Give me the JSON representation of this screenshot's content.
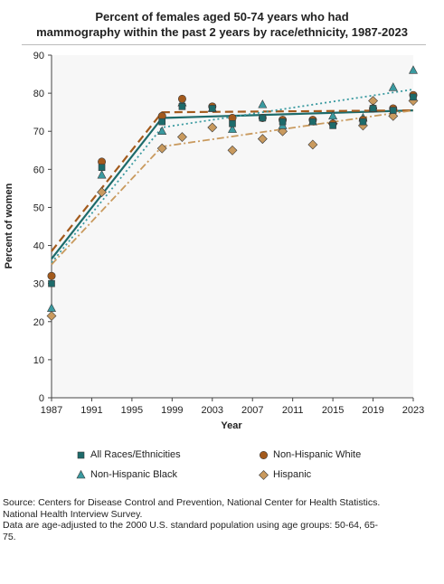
{
  "chart_data": {
    "type": "line",
    "title_lines": [
      "Percent of females aged 50-74 years who had",
      "mammography within the past 2 years by race/ethnicity, 1987-2023"
    ],
    "xlabel": "Year",
    "ylabel": "Percent of women",
    "xlim": [
      1987,
      2023
    ],
    "ylim": [
      0,
      90
    ],
    "x_ticks": [
      "1987",
      "1991",
      "1995",
      "1999",
      "2003",
      "2007",
      "2011",
      "2015",
      "2019",
      "2023"
    ],
    "y_ticks": [
      "0",
      "10",
      "20",
      "30",
      "40",
      "50",
      "60",
      "70",
      "80",
      "90"
    ],
    "grid": false,
    "legend_position": "bottom",
    "colors": {
      "all": "#1d6b6b",
      "white": "#a35a1c",
      "black": "#3a9aa0",
      "hispanic": "#c99a5e"
    },
    "series": [
      {
        "name": "All Races/Ethnicities",
        "key": "all",
        "marker": "square",
        "observed": [
          [
            1987,
            30
          ],
          [
            1992,
            60.5
          ],
          [
            1998,
            72.5
          ],
          [
            2000,
            76.5
          ],
          [
            2003,
            76
          ],
          [
            2005,
            72
          ],
          [
            2008,
            73.5
          ],
          [
            2010,
            72.5
          ],
          [
            2013,
            72.5
          ],
          [
            2015,
            71.5
          ],
          [
            2018,
            72.5
          ],
          [
            2019,
            76
          ],
          [
            2021,
            75.5
          ],
          [
            2023,
            79
          ]
        ],
        "trend": [
          [
            1987,
            36.5
          ],
          [
            1998,
            73.5
          ],
          [
            2023,
            75.5
          ]
        ]
      },
      {
        "name": "Non-Hispanic White",
        "key": "white",
        "marker": "circle",
        "observed": [
          [
            1987,
            32
          ],
          [
            1992,
            62
          ],
          [
            1998,
            74
          ],
          [
            2000,
            78.5
          ],
          [
            2003,
            76.5
          ],
          [
            2005,
            73.5
          ],
          [
            2008,
            73.5
          ],
          [
            2010,
            73
          ],
          [
            2013,
            73
          ],
          [
            2015,
            72
          ],
          [
            2018,
            73
          ],
          [
            2019,
            76
          ],
          [
            2021,
            76
          ],
          [
            2023,
            79.5
          ]
        ],
        "trend": [
          [
            1987,
            38.5
          ],
          [
            1998,
            75
          ],
          [
            2023,
            75.5
          ]
        ]
      },
      {
        "name": "Non-Hispanic Black",
        "key": "black",
        "marker": "triangle",
        "observed": [
          [
            1987,
            23.5
          ],
          [
            1992,
            58.5
          ],
          [
            1998,
            70
          ],
          [
            2000,
            77.5
          ],
          [
            2003,
            76
          ],
          [
            2005,
            70.5
          ],
          [
            2008,
            77
          ],
          [
            2010,
            71.5
          ],
          [
            2013,
            72.5
          ],
          [
            2015,
            74
          ],
          [
            2018,
            73.5
          ],
          [
            2019,
            76
          ],
          [
            2021,
            81.5
          ],
          [
            2023,
            86
          ]
        ],
        "trend": [
          [
            1987,
            35.5
          ],
          [
            1998,
            71
          ],
          [
            2023,
            81
          ]
        ]
      },
      {
        "name": "Hispanic",
        "key": "hispanic",
        "marker": "diamond",
        "observed": [
          [
            1987,
            21.5
          ],
          [
            1992,
            54
          ],
          [
            1998,
            65.5
          ],
          [
            2000,
            68.5
          ],
          [
            2003,
            71
          ],
          [
            2005,
            65
          ],
          [
            2008,
            68
          ],
          [
            2010,
            70
          ],
          [
            2013,
            66.5
          ],
          [
            2015,
            72
          ],
          [
            2018,
            71.5
          ],
          [
            2019,
            78
          ],
          [
            2021,
            74
          ],
          [
            2023,
            78
          ]
        ],
        "trend": [
          [
            1987,
            35
          ],
          [
            1998,
            66
          ],
          [
            2023,
            75.5
          ]
        ]
      }
    ]
  },
  "footnote": {
    "lines": [
      "Source: Centers for Disease Control and Prevention, National Center for Health Statistics.",
      "National Health Interview Survey.",
      "Data are age-adjusted to the 2000 U.S. standard population using age groups: 50-64, 65-",
      "75."
    ]
  }
}
